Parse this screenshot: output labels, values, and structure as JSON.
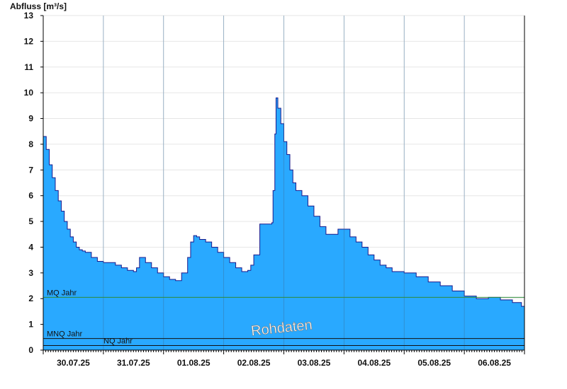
{
  "chart_data": {
    "type": "area",
    "title": "",
    "ylabel": "Abfluss [m³/s]",
    "xlabel": "",
    "ylim": [
      0,
      13
    ],
    "yticks": [
      0,
      1,
      2,
      3,
      4,
      5,
      6,
      7,
      8,
      9,
      10,
      11,
      12,
      13
    ],
    "xlim": [
      0,
      8
    ],
    "x_unit": "days",
    "x_ticks": [
      {
        "x": 0.5,
        "label": "30.07.25"
      },
      {
        "x": 1.5,
        "label": "31.07.25"
      },
      {
        "x": 2.5,
        "label": "01.08.25"
      },
      {
        "x": 3.5,
        "label": "02.08.25"
      },
      {
        "x": 4.5,
        "label": "03.08.25"
      },
      {
        "x": 5.5,
        "label": "04.08.25"
      },
      {
        "x": 6.5,
        "label": "05.08.25"
      },
      {
        "x": 7.5,
        "label": "06.08.25"
      }
    ],
    "day_boundaries": [
      1,
      2,
      3,
      4,
      5,
      6,
      7
    ],
    "fill_color": "#29a9ff",
    "line_color": "#1a1a8c",
    "ref_lines": [
      {
        "label": "MQ Jahr",
        "value": 2.05,
        "color": "#2e8b3a"
      },
      {
        "label": "MNQ Jahr",
        "value": 0.45,
        "color": "#111111"
      },
      {
        "label": "NQ Jahr",
        "value": 0.18,
        "color": "#111111"
      }
    ],
    "watermark": "Rohdaten",
    "x": [
      0,
      0.05,
      0.1,
      0.15,
      0.2,
      0.25,
      0.3,
      0.35,
      0.4,
      0.45,
      0.5,
      0.55,
      0.6,
      0.65,
      0.7,
      0.8,
      0.9,
      1.0,
      1.1,
      1.2,
      1.3,
      1.4,
      1.5,
      1.55,
      1.6,
      1.7,
      1.8,
      1.9,
      2.0,
      2.1,
      2.2,
      2.3,
      2.4,
      2.45,
      2.5,
      2.55,
      2.6,
      2.7,
      2.8,
      2.9,
      3.0,
      3.1,
      3.2,
      3.3,
      3.35,
      3.4,
      3.45,
      3.5,
      3.6,
      3.8,
      3.82,
      3.85,
      3.87,
      3.9,
      3.95,
      4.0,
      4.05,
      4.1,
      4.15,
      4.2,
      4.3,
      4.4,
      4.5,
      4.6,
      4.7,
      4.8,
      4.9,
      5.0,
      5.1,
      5.2,
      5.3,
      5.4,
      5.5,
      5.6,
      5.7,
      5.8,
      6.0,
      6.2,
      6.4,
      6.6,
      6.8,
      7.0,
      7.2,
      7.4,
      7.6,
      7.8,
      7.95,
      8.0
    ],
    "values": [
      8.3,
      7.8,
      7.2,
      6.7,
      6.2,
      5.8,
      5.4,
      5.0,
      4.7,
      4.4,
      4.2,
      4.0,
      3.9,
      3.85,
      3.8,
      3.6,
      3.45,
      3.4,
      3.4,
      3.3,
      3.2,
      3.1,
      3.05,
      3.2,
      3.6,
      3.4,
      3.2,
      3.0,
      2.85,
      2.75,
      2.7,
      3.0,
      3.6,
      4.2,
      4.45,
      4.4,
      4.3,
      4.2,
      4.0,
      3.8,
      3.6,
      3.4,
      3.2,
      3.05,
      3.05,
      3.1,
      3.3,
      3.7,
      4.9,
      4.95,
      6.2,
      8.4,
      9.8,
      9.4,
      8.8,
      8.1,
      7.6,
      7.0,
      6.5,
      6.2,
      6.0,
      5.6,
      5.2,
      4.8,
      4.5,
      4.5,
      4.7,
      4.7,
      4.4,
      4.2,
      4.0,
      3.7,
      3.5,
      3.3,
      3.2,
      3.05,
      3.0,
      2.85,
      2.65,
      2.5,
      2.3,
      2.1,
      2.0,
      2.05,
      1.95,
      1.85,
      1.7,
      1.6
    ]
  }
}
